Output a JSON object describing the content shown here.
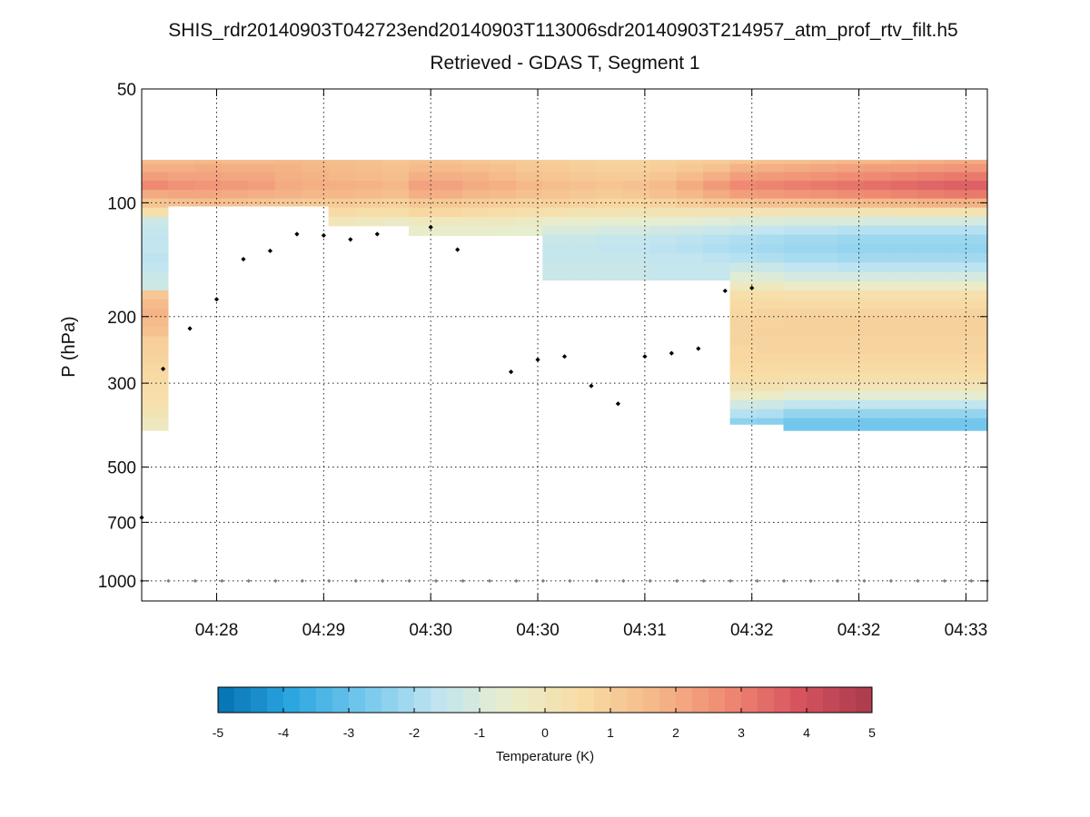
{
  "chart_data": {
    "type": "heatmap",
    "title_line1": "SHIS_rdr20140903T042723end20140903T113006sdr20140903T214957_atm_prof_rtv_filt.h5",
    "title_line2": "Retrieved - GDAS T, Segment 1",
    "ylabel": "P (hPa)",
    "y_scale": "log",
    "y_reversed": true,
    "ylim": [
      50,
      1130
    ],
    "ytick_labels": [
      {
        "label": "50",
        "value": 50
      },
      {
        "label": "100",
        "value": 100
      },
      {
        "label": "200",
        "value": 200
      },
      {
        "label": "300",
        "value": 300
      },
      {
        "label": "500",
        "value": 500
      },
      {
        "label": "700",
        "value": 700
      },
      {
        "label": "1000",
        "value": 1000
      }
    ],
    "xlim": [
      -0.2,
      7.7
    ],
    "xtick_labels": [
      {
        "label": "04:28",
        "value": 0.5
      },
      {
        "label": "04:29",
        "value": 1.5
      },
      {
        "label": "04:30",
        "value": 2.5
      },
      {
        "label": "04:30",
        "value": 3.5
      },
      {
        "label": "04:31",
        "value": 4.5
      },
      {
        "label": "04:32",
        "value": 5.5
      },
      {
        "label": "04:32",
        "value": 6.5
      },
      {
        "label": "04:33",
        "value": 7.5
      }
    ],
    "colorbar": {
      "label": "Temperature (K)",
      "vmin": -5,
      "vmax": 5,
      "ticks": [
        "-5",
        "-4",
        "-3",
        "-2",
        "-1",
        "0",
        "1",
        "2",
        "3",
        "4",
        "5"
      ],
      "stops": [
        "#0570b0",
        "#2ba6e0",
        "#74c8ec",
        "#bfe4f1",
        "#e9eecd",
        "#f8dca5",
        "#f5b989",
        "#ef8a72",
        "#d7535f",
        "#a93a4c"
      ]
    },
    "pressure_levels": [
      77,
      81,
      85,
      90,
      95,
      100,
      106,
      112,
      118,
      125,
      132,
      140,
      148,
      157,
      166,
      175,
      185,
      196,
      207,
      219,
      232,
      245,
      259,
      274,
      290,
      306,
      324,
      342,
      361,
      382
    ],
    "columns": [
      {
        "x": -0.08,
        "bottom": 400,
        "values": [
          1.6,
          1.9,
          2.3,
          2.8,
          2.0,
          1.3,
          0.4,
          -1.3,
          -1.5,
          -1.6,
          -1.6,
          -1.7,
          -1.6,
          -1.4,
          -1.3,
          1.2,
          1.6,
          1.8,
          1.6,
          1.4,
          1.0,
          0.9,
          0.8,
          0.7,
          0.6,
          0.5,
          0.4,
          0.3,
          0.1,
          -0.2
        ]
      },
      {
        "x": 0.17,
        "bottom": 102,
        "values": [
          1.6,
          1.9,
          2.2,
          2.6,
          2.1,
          1.4
        ]
      },
      {
        "x": 0.42,
        "bottom": 102,
        "values": [
          1.7,
          2.0,
          2.2,
          2.5,
          2.1,
          1.5
        ]
      },
      {
        "x": 0.67,
        "bottom": 102,
        "values": [
          1.6,
          1.9,
          2.1,
          2.4,
          2.0,
          1.4
        ]
      },
      {
        "x": 0.92,
        "bottom": 102,
        "values": [
          1.6,
          1.9,
          2.1,
          2.3,
          1.9,
          1.3
        ]
      },
      {
        "x": 1.17,
        "bottom": 102,
        "values": [
          1.7,
          1.8,
          1.9,
          2.0,
          1.8,
          1.2
        ]
      },
      {
        "x": 1.42,
        "bottom": 102,
        "values": [
          1.6,
          1.7,
          1.8,
          1.9,
          1.7,
          1.1
        ]
      },
      {
        "x": 1.67,
        "bottom": 115,
        "values": [
          1.5,
          1.6,
          1.7,
          1.9,
          1.7,
          1.1,
          0.6,
          0.0
        ]
      },
      {
        "x": 1.92,
        "bottom": 115,
        "values": [
          1.4,
          1.5,
          1.6,
          1.8,
          1.6,
          1.0,
          0.5,
          -0.2
        ]
      },
      {
        "x": 2.17,
        "bottom": 115,
        "values": [
          1.3,
          1.4,
          1.5,
          1.7,
          1.5,
          0.9,
          0.5,
          -0.3
        ]
      },
      {
        "x": 2.42,
        "bottom": 122,
        "values": [
          1.4,
          1.6,
          1.9,
          2.2,
          1.9,
          1.2,
          0.7,
          -0.1,
          -0.5
        ]
      },
      {
        "x": 2.67,
        "bottom": 122,
        "values": [
          1.4,
          1.6,
          1.9,
          2.2,
          1.9,
          1.2,
          0.7,
          -0.1,
          -0.5
        ]
      },
      {
        "x": 2.92,
        "bottom": 122,
        "values": [
          1.3,
          1.5,
          1.8,
          2.0,
          1.7,
          1.1,
          0.6,
          -0.2,
          -0.5
        ]
      },
      {
        "x": 3.17,
        "bottom": 122,
        "values": [
          1.2,
          1.4,
          1.6,
          1.9,
          1.6,
          1.0,
          0.5,
          -0.2,
          -0.6
        ]
      },
      {
        "x": 3.42,
        "bottom": 122,
        "values": [
          1.1,
          1.2,
          1.4,
          1.7,
          1.4,
          0.9,
          0.4,
          -0.3,
          -0.6
        ]
      },
      {
        "x": 3.67,
        "bottom": 160,
        "values": [
          1.0,
          1.1,
          1.3,
          1.5,
          1.3,
          0.9,
          0.3,
          -0.5,
          -1.0,
          -1.4,
          -1.5,
          -1.5,
          -1.4
        ]
      },
      {
        "x": 3.92,
        "bottom": 160,
        "values": [
          0.9,
          1.0,
          1.2,
          1.4,
          1.2,
          0.8,
          0.2,
          -0.5,
          -1.0,
          -1.4,
          -1.5,
          -1.5,
          -1.4
        ]
      },
      {
        "x": 4.17,
        "bottom": 160,
        "values": [
          0.8,
          0.9,
          1.1,
          1.3,
          1.1,
          0.7,
          0.2,
          -0.6,
          -1.1,
          -1.5,
          -1.6,
          -1.5,
          -1.4
        ]
      },
      {
        "x": 4.42,
        "bottom": 160,
        "values": [
          0.8,
          0.9,
          1.1,
          1.4,
          1.2,
          0.7,
          0.1,
          -0.6,
          -1.1,
          -1.5,
          -1.6,
          -1.5,
          -1.4
        ]
      },
      {
        "x": 4.67,
        "bottom": 160,
        "values": [
          0.9,
          1.0,
          1.3,
          1.6,
          1.4,
          0.8,
          0.1,
          -0.7,
          -1.2,
          -1.6,
          -1.7,
          -1.6,
          -1.5
        ]
      },
      {
        "x": 4.92,
        "bottom": 160,
        "values": [
          1.0,
          1.2,
          1.6,
          2.0,
          1.7,
          1.0,
          0.1,
          -0.7,
          -1.3,
          -1.7,
          -1.8,
          -1.6,
          -1.5
        ]
      },
      {
        "x": 5.17,
        "bottom": 160,
        "values": [
          1.1,
          1.4,
          1.9,
          2.4,
          2.0,
          1.2,
          0.1,
          -0.8,
          -1.4,
          -1.8,
          -1.9,
          -1.7,
          -1.5
        ]
      },
      {
        "x": 5.42,
        "bottom": 385,
        "values": [
          1.3,
          1.8,
          2.3,
          2.8,
          2.3,
          1.3,
          0.1,
          -0.9,
          -1.5,
          -1.9,
          -2.0,
          -1.8,
          -1.3,
          -0.8,
          -0.2,
          0.4,
          0.6,
          0.7,
          0.8,
          0.8,
          0.8,
          0.7,
          0.7,
          0.6,
          0.5,
          0.2,
          -0.4,
          -1.2,
          -1.8,
          -2.4
        ]
      },
      {
        "x": 5.67,
        "bottom": 385,
        "values": [
          1.4,
          1.9,
          2.4,
          2.9,
          2.4,
          1.4,
          0.1,
          -0.9,
          -1.6,
          -2.0,
          -2.1,
          -1.9,
          -1.4,
          -0.9,
          -0.2,
          0.4,
          0.6,
          0.8,
          0.8,
          0.9,
          0.8,
          0.8,
          0.7,
          0.6,
          0.5,
          0.2,
          -0.4,
          -1.3,
          -1.9,
          -2.5
        ]
      },
      {
        "x": 5.92,
        "bottom": 400,
        "values": [
          1.5,
          2.0,
          2.5,
          3.0,
          2.5,
          1.4,
          0.1,
          -1.0,
          -1.7,
          -2.1,
          -2.2,
          -2.0,
          -1.6,
          -1.1,
          -0.4,
          0.3,
          0.6,
          0.8,
          0.9,
          0.9,
          0.8,
          0.8,
          0.7,
          0.6,
          0.4,
          0.0,
          -0.7,
          -1.6,
          -2.3,
          -2.8
        ]
      },
      {
        "x": 6.17,
        "bottom": 400,
        "values": [
          1.6,
          2.1,
          2.6,
          3.1,
          2.6,
          1.5,
          0.1,
          -1.0,
          -1.7,
          -2.1,
          -2.2,
          -2.0,
          -1.6,
          -1.1,
          -0.4,
          0.3,
          0.6,
          0.8,
          0.9,
          0.9,
          0.8,
          0.8,
          0.7,
          0.6,
          0.4,
          0.0,
          -0.7,
          -1.6,
          -2.3,
          -2.8
        ]
      },
      {
        "x": 6.42,
        "bottom": 400,
        "values": [
          1.7,
          2.2,
          2.7,
          3.2,
          2.7,
          1.6,
          0.1,
          -1.0,
          -1.8,
          -2.2,
          -2.3,
          -2.1,
          -1.7,
          -1.1,
          -0.4,
          0.3,
          0.6,
          0.8,
          0.9,
          0.9,
          0.8,
          0.8,
          0.7,
          0.6,
          0.4,
          0.0,
          -0.7,
          -1.6,
          -2.3,
          -2.8
        ]
      },
      {
        "x": 6.67,
        "bottom": 400,
        "values": [
          1.7,
          2.3,
          2.8,
          3.3,
          2.8,
          1.6,
          0.1,
          -1.1,
          -1.8,
          -2.2,
          -2.3,
          -2.1,
          -1.7,
          -1.1,
          -0.4,
          0.3,
          0.6,
          0.8,
          0.9,
          0.9,
          0.8,
          0.8,
          0.7,
          0.6,
          0.4,
          0.0,
          -0.7,
          -1.6,
          -2.3,
          -2.8
        ]
      },
      {
        "x": 6.92,
        "bottom": 400,
        "values": [
          1.8,
          2.3,
          2.9,
          3.4,
          2.9,
          1.7,
          0.2,
          -1.1,
          -1.8,
          -2.2,
          -2.3,
          -2.1,
          -1.7,
          -1.1,
          -0.4,
          0.3,
          0.6,
          0.8,
          0.9,
          0.9,
          0.8,
          0.8,
          0.7,
          0.6,
          0.4,
          0.0,
          -0.7,
          -1.6,
          -2.3,
          -2.8
        ]
      },
      {
        "x": 7.17,
        "bottom": 400,
        "values": [
          1.9,
          2.4,
          3.0,
          3.5,
          3.0,
          1.8,
          0.2,
          -1.1,
          -1.8,
          -2.2,
          -2.3,
          -2.1,
          -1.7,
          -1.1,
          -0.4,
          0.3,
          0.6,
          0.8,
          0.9,
          0.9,
          0.8,
          0.8,
          0.7,
          0.6,
          0.4,
          0.0,
          -0.7,
          -1.6,
          -2.3,
          -2.8
        ]
      },
      {
        "x": 7.42,
        "bottom": 400,
        "values": [
          2.0,
          2.5,
          3.1,
          3.6,
          3.1,
          1.8,
          0.2,
          -1.1,
          -1.8,
          -2.2,
          -2.3,
          -2.1,
          -1.7,
          -1.1,
          -0.4,
          0.3,
          0.6,
          0.8,
          0.9,
          0.9,
          0.8,
          0.8,
          0.7,
          0.6,
          0.4,
          0.0,
          -0.7,
          -1.6,
          -2.3,
          -2.8
        ]
      },
      {
        "x": 7.67,
        "bottom": 400,
        "values": [
          2.0,
          2.5,
          3.1,
          3.6,
          3.1,
          1.8,
          0.2,
          -1.1,
          -1.8,
          -2.2,
          -2.3,
          -2.1,
          -1.7,
          -1.1,
          -0.4,
          0.3,
          0.6,
          0.8,
          0.9,
          0.9,
          0.8,
          0.8,
          0.7,
          0.6,
          0.4,
          0.0,
          -0.7,
          -1.6,
          -2.3,
          -2.8
        ]
      }
    ],
    "marker_points": [
      {
        "x": -0.2,
        "p": 680
      },
      {
        "x": 0.0,
        "p": 275
      },
      {
        "x": 0.25,
        "p": 215
      },
      {
        "x": 0.5,
        "p": 180
      },
      {
        "x": 0.75,
        "p": 141
      },
      {
        "x": 1.0,
        "p": 134
      },
      {
        "x": 1.25,
        "p": 121
      },
      {
        "x": 1.5,
        "p": 122
      },
      {
        "x": 1.75,
        "p": 125
      },
      {
        "x": 2.0,
        "p": 121
      },
      {
        "x": 2.5,
        "p": 116
      },
      {
        "x": 2.75,
        "p": 133
      },
      {
        "x": 3.25,
        "p": 280
      },
      {
        "x": 3.5,
        "p": 260
      },
      {
        "x": 3.75,
        "p": 255
      },
      {
        "x": 4.0,
        "p": 305
      },
      {
        "x": 4.25,
        "p": 340
      },
      {
        "x": 4.5,
        "p": 255
      },
      {
        "x": 4.75,
        "p": 250
      },
      {
        "x": 5.0,
        "p": 243
      },
      {
        "x": 5.25,
        "p": 171
      },
      {
        "x": 5.5,
        "p": 168
      }
    ],
    "surface_points": {
      "p": 1000,
      "x": [
        -0.2,
        0.05,
        0.3,
        0.55,
        0.8,
        1.05,
        1.3,
        1.55,
        1.8,
        2.05,
        2.3,
        2.55,
        2.8,
        3.05,
        3.3,
        3.55,
        3.8,
        4.05,
        4.3,
        4.55,
        4.8,
        5.05,
        5.3,
        5.55,
        5.8,
        6.05,
        6.3,
        6.55,
        6.8,
        7.05,
        7.3,
        7.55,
        7.7
      ]
    }
  }
}
